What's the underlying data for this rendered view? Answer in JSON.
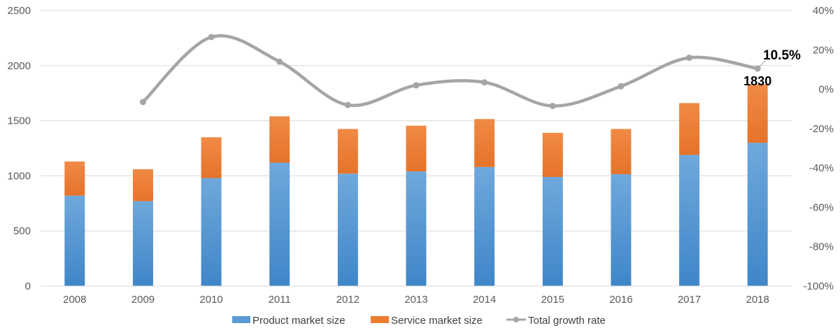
{
  "chart_data": {
    "type": "bar",
    "stacked": true,
    "categories": [
      "2008",
      "2009",
      "2010",
      "2011",
      "2012",
      "2013",
      "2014",
      "2015",
      "2016",
      "2017",
      "2018"
    ],
    "series": [
      {
        "name": "Product market size",
        "kind": "bar",
        "axis": "left",
        "values": [
          820,
          770,
          980,
          1120,
          1020,
          1040,
          1080,
          990,
          1015,
          1190,
          1300
        ]
      },
      {
        "name": "Service market size",
        "kind": "bar",
        "axis": "left",
        "values": [
          310,
          290,
          370,
          420,
          405,
          415,
          435,
          400,
          410,
          470,
          530
        ]
      },
      {
        "name": "Total growth rate",
        "kind": "line",
        "axis": "right",
        "values": [
          null,
          -6.5,
          26.5,
          14,
          -8,
          2,
          3.5,
          -8.5,
          1.5,
          16,
          10.5
        ]
      }
    ],
    "left_axis": {
      "min": 0,
      "max": 2500,
      "ticks": [
        "0",
        "500",
        "1000",
        "1500",
        "2000",
        "2500"
      ]
    },
    "right_axis": {
      "min": -100,
      "max": 40,
      "ticks": [
        "-100%",
        "-80%",
        "-60%",
        "-40%",
        "-20%",
        "0%",
        "20%",
        "40%"
      ]
    },
    "annotations": {
      "last_total": "1830",
      "last_growth": "10.5%"
    },
    "legend": {
      "placement": "bottom-center",
      "items": [
        "Product market size",
        "Service market size",
        "Total growth rate"
      ]
    },
    "colors": {
      "product": "#5B9BD5",
      "service": "#ED7D31",
      "line": "#A5A5A5",
      "grid": "#D9D9D9"
    },
    "title": "",
    "xlabel": "",
    "ylabel": ""
  }
}
